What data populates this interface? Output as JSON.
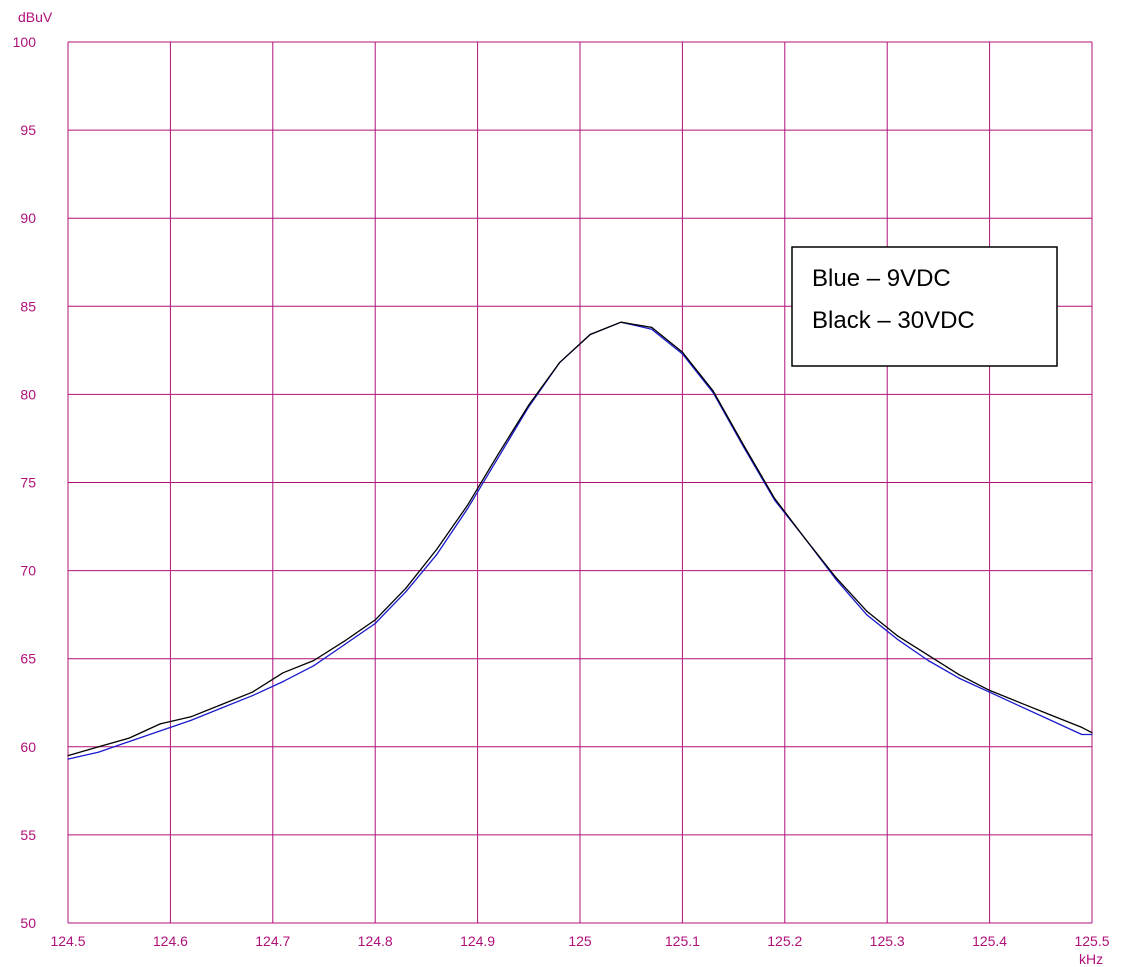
{
  "colors": {
    "grid": "#b0107a",
    "axis_text": "#b0107a",
    "background": "#ffffff"
  },
  "chart_data": {
    "type": "line",
    "title": "",
    "xlabel": "kHz",
    "ylabel": "dBuV",
    "xlim": [
      124.5,
      125.5
    ],
    "ylim": [
      50,
      100
    ],
    "grid": true,
    "legend_position": "top-right",
    "x_ticks": [
      "124.5",
      "124.6",
      "124.7",
      "124.8",
      "124.9",
      "125",
      "125.1",
      "125.2",
      "125.3",
      "125.4",
      "125.5"
    ],
    "y_ticks": [
      "50",
      "55",
      "60",
      "65",
      "70",
      "75",
      "80",
      "85",
      "90",
      "95",
      "100"
    ],
    "legend": {
      "line1": "Blue – 9VDC",
      "line2": "Black – 30VDC"
    },
    "x": [
      124.5,
      124.53,
      124.56,
      124.59,
      124.62,
      124.65,
      124.68,
      124.71,
      124.74,
      124.77,
      124.8,
      124.83,
      124.86,
      124.89,
      124.92,
      124.95,
      124.98,
      125.01,
      125.04,
      125.07,
      125.1,
      125.13,
      125.16,
      125.19,
      125.22,
      125.25,
      125.28,
      125.31,
      125.34,
      125.37,
      125.4,
      125.43,
      125.46,
      125.49,
      125.5
    ],
    "series": [
      {
        "name": "Blue – 9VDC",
        "color": "#1a1acc",
        "values": [
          59.3,
          59.7,
          60.3,
          60.9,
          61.5,
          62.2,
          62.9,
          63.7,
          64.6,
          65.8,
          67.0,
          68.8,
          70.9,
          73.5,
          76.4,
          79.3,
          81.8,
          83.4,
          84.1,
          83.7,
          82.3,
          80.1,
          77.0,
          74.0,
          71.8,
          69.5,
          67.5,
          66.1,
          64.9,
          63.9,
          63.1,
          62.3,
          61.5,
          60.7,
          60.7
        ]
      },
      {
        "name": "Black – 30VDC",
        "color": "#000000",
        "values": [
          59.5,
          60.0,
          60.5,
          61.3,
          61.7,
          62.4,
          63.1,
          64.2,
          64.9,
          66.0,
          67.2,
          69.0,
          71.2,
          73.7,
          76.6,
          79.4,
          81.8,
          83.4,
          84.1,
          83.8,
          82.4,
          80.2,
          77.1,
          74.1,
          71.8,
          69.6,
          67.7,
          66.3,
          65.2,
          64.1,
          63.2,
          62.5,
          61.8,
          61.1,
          60.8
        ]
      }
    ]
  }
}
